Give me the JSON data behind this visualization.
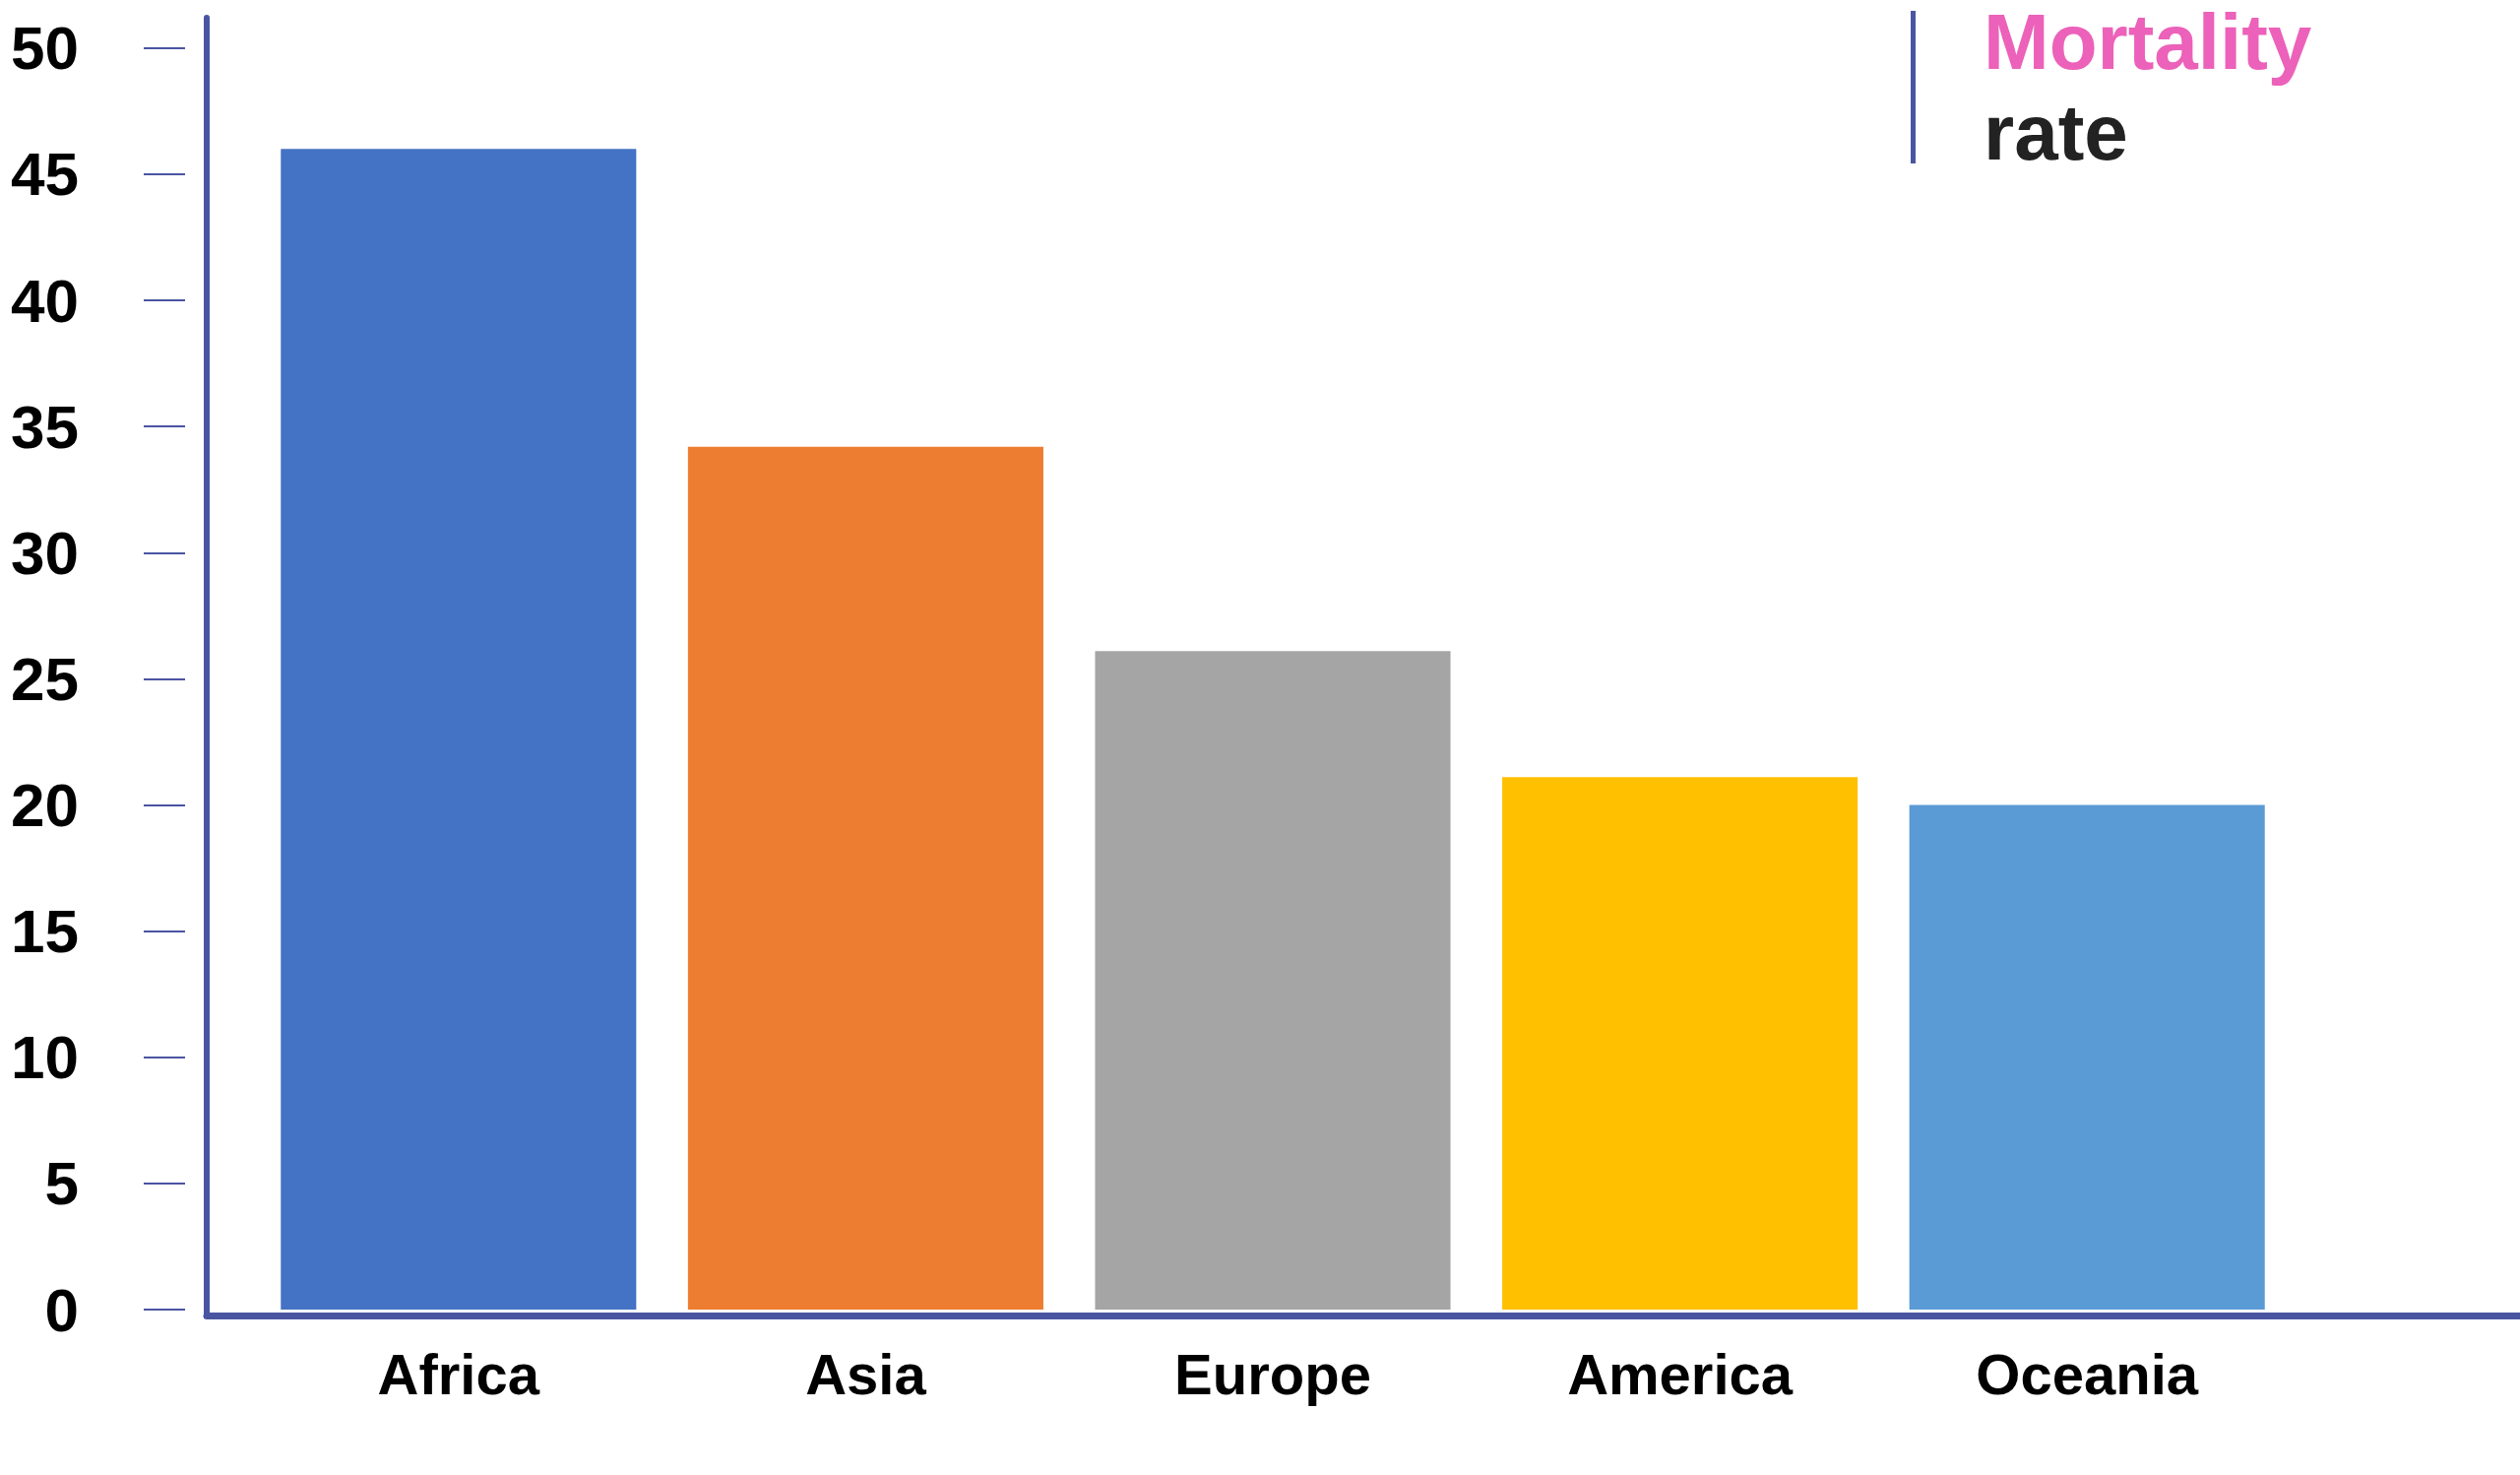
{
  "chart_data": {
    "type": "bar",
    "title": "Mortality rate",
    "categories": [
      "Africa",
      "Asia",
      "Europe",
      "America",
      "Oceania"
    ],
    "values": [
      46,
      34.2,
      26.1,
      21.1,
      20
    ],
    "colors": [
      "#4472c4",
      "#ed7d31",
      "#a5a5a5",
      "#ffc000",
      "#5b9bd5"
    ],
    "ylim": [
      0,
      51.2
    ],
    "yticks": [
      0,
      5,
      10,
      15,
      20,
      25,
      30,
      35,
      40,
      45,
      50
    ]
  }
}
